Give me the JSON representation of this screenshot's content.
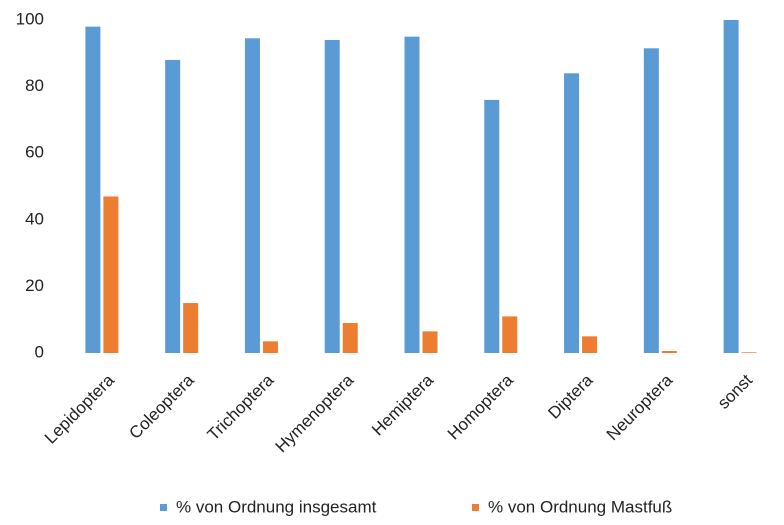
{
  "chart_data": {
    "type": "bar",
    "categories": [
      "Lepidoptera",
      "Coleoptera",
      "Trichoptera",
      "Hymenoptera",
      "Hemiptera",
      "Homoptera",
      "Diptera",
      "Neuroptera",
      "sonst"
    ],
    "series": [
      {
        "name": "% von Ordnung insgesamt",
        "color": "#5b9bd5",
        "values": [
          98,
          88,
          94.5,
          94,
          95,
          76,
          84,
          91.5,
          100
        ]
      },
      {
        "name": "% von Ordnung Mastfuß",
        "color": "#ed7d31",
        "values": [
          47,
          15,
          3.5,
          9,
          6.5,
          11,
          5,
          0.6,
          0.2
        ]
      }
    ],
    "ylim": [
      0,
      100
    ],
    "yticks": [
      0,
      20,
      40,
      60,
      80,
      100
    ],
    "grid": false,
    "legend": "bottom"
  }
}
